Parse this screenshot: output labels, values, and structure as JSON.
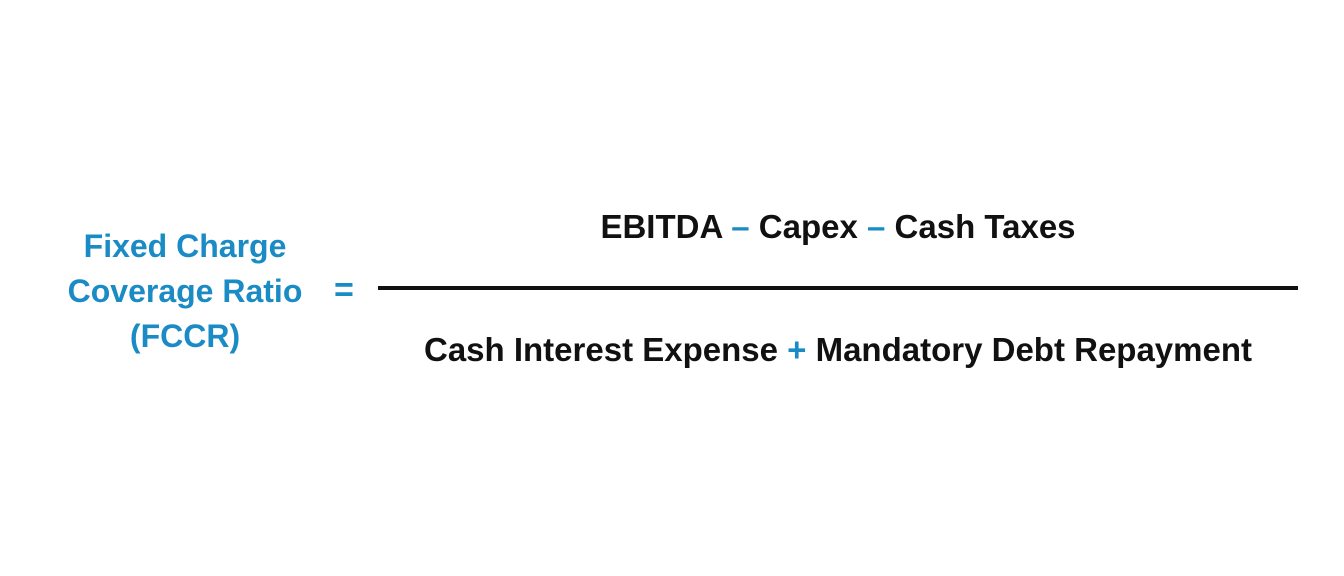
{
  "colors": {
    "accent": "#1a8bc4",
    "text": "#111111",
    "background": "#ffffff"
  },
  "lhs": {
    "line1": "Fixed Charge",
    "line2": "Coverage Ratio",
    "line3": "(FCCR)"
  },
  "equals": "=",
  "numerator": {
    "term1": "EBITDA",
    "op1": "–",
    "term2": "Capex",
    "op2": "–",
    "term3": "Cash Taxes"
  },
  "denominator": {
    "term1": "Cash Interest Expense",
    "op1": "+",
    "term2": "Mandatory Debt Repayment"
  }
}
